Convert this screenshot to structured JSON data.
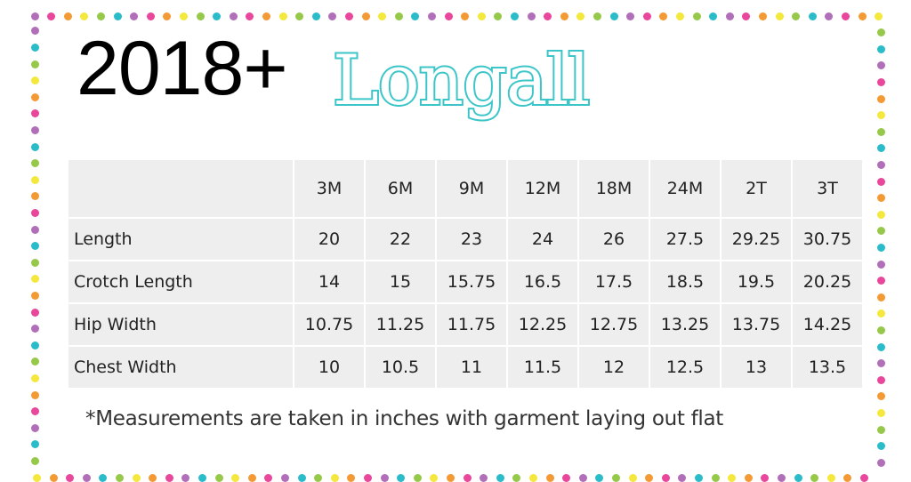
{
  "title": {
    "year": "2018+",
    "brand": "Longall"
  },
  "colors": {
    "brand": "#3cc6c9",
    "dots": [
      "#b06fb8",
      "#e8479b",
      "#f39a34",
      "#f4e83c",
      "#96c94a",
      "#2bbcc9"
    ],
    "cell": "#eeeeee"
  },
  "table": {
    "headers": [
      "",
      "3M",
      "6M",
      "9M",
      "12M",
      "18M",
      "24M",
      "2T",
      "3T"
    ],
    "rows": [
      {
        "label": "Length",
        "values": [
          "20",
          "22",
          "23",
          "24",
          "26",
          "27.5",
          "29.25",
          "30.75"
        ]
      },
      {
        "label": "Crotch Length",
        "values": [
          "14",
          "15",
          "15.75",
          "16.5",
          "17.5",
          "18.5",
          "19.5",
          "20.25"
        ]
      },
      {
        "label": "Hip Width",
        "values": [
          "10.75",
          "11.25",
          "11.75",
          "12.25",
          "12.75",
          "13.25",
          "13.75",
          "14.25"
        ]
      },
      {
        "label": "Chest Width",
        "values": [
          "10",
          "10.5",
          "11",
          "11.5",
          "12",
          "12.5",
          "13",
          "13.5"
        ]
      }
    ]
  },
  "note": "*Measurements are taken in inches with garment laying out flat"
}
